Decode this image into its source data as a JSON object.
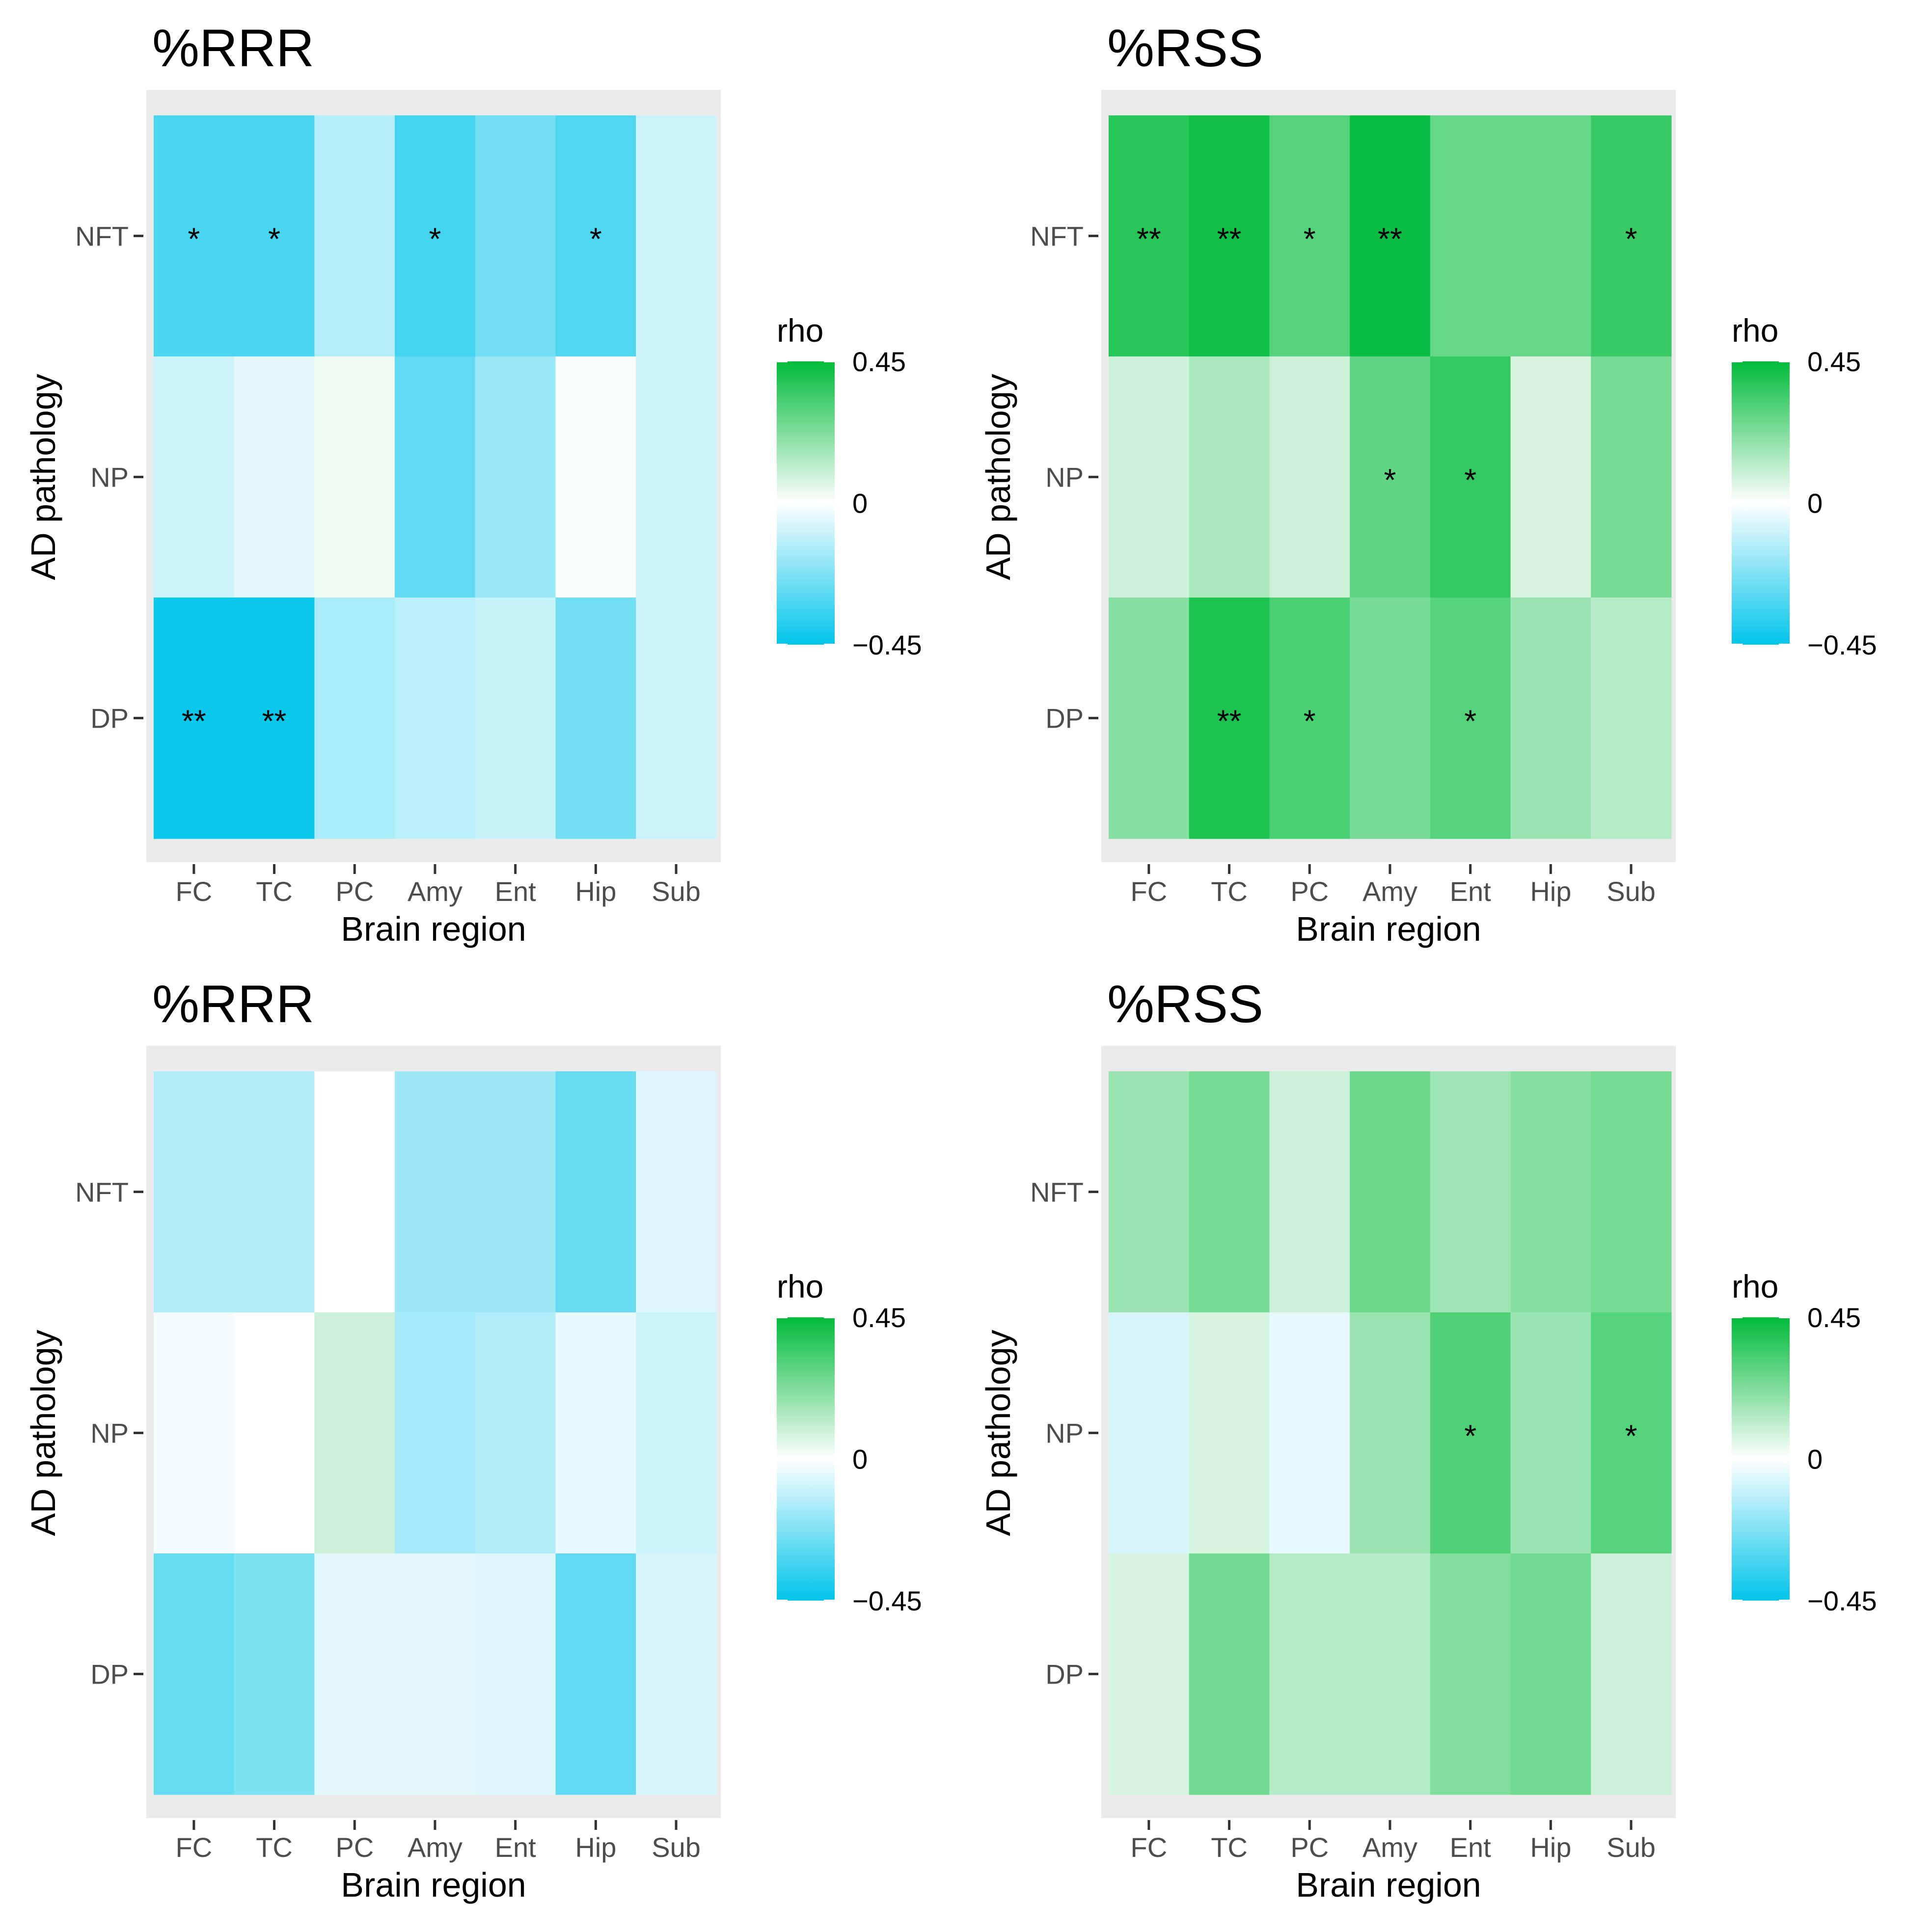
{
  "figure": {
    "rows": [
      "NFT",
      "NP",
      "DP"
    ],
    "columns": [
      "FC",
      "TC",
      "PC",
      "Amy",
      "Ent",
      "Hip",
      "Sub"
    ],
    "xlabel": "Brain region",
    "ylabel": "AD pathology",
    "legend": {
      "title": "rho",
      "max_label": "0.45",
      "mid_label": "0",
      "min_label": "−0.45",
      "colors": {
        "low": "#00c4ea",
        "mid": "#ffffff",
        "high": "#00bb3a"
      }
    }
  },
  "chart_data": [
    {
      "type": "heatmap",
      "title": "%RRR",
      "xlabel": "Brain region",
      "ylabel": "AD pathology",
      "x": [
        "FC",
        "TC",
        "PC",
        "Amy",
        "Ent",
        "Hip",
        "Sub"
      ],
      "y": [
        "NFT",
        "NP",
        "DP"
      ],
      "scale": {
        "min": -0.45,
        "max": 0.45
      },
      "values": [
        [
          -0.32,
          -0.32,
          -0.13,
          -0.33,
          -0.25,
          -0.31,
          -0.09
        ],
        [
          -0.09,
          -0.05,
          0.03,
          -0.28,
          -0.18,
          0.01,
          -0.09
        ],
        [
          -0.43,
          -0.43,
          -0.15,
          -0.12,
          -0.1,
          -0.25,
          -0.09
        ]
      ],
      "significance": [
        [
          "*",
          "*",
          "",
          "*",
          "",
          "*",
          ""
        ],
        [
          "",
          "",
          "",
          "",
          "",
          "",
          ""
        ],
        [
          "**",
          "**",
          "",
          "",
          "",
          "",
          ""
        ]
      ]
    },
    {
      "type": "heatmap",
      "title": "%RSS",
      "xlabel": "Brain region",
      "ylabel": "AD pathology",
      "x": [
        "FC",
        "TC",
        "PC",
        "Amy",
        "Ent",
        "Hip",
        "Sub"
      ],
      "y": [
        "NFT",
        "NP",
        "DP"
      ],
      "scale": {
        "min": -0.45,
        "max": 0.45
      },
      "values": [
        [
          0.38,
          0.42,
          0.3,
          0.43,
          0.27,
          0.27,
          0.35
        ],
        [
          0.09,
          0.15,
          0.09,
          0.28,
          0.36,
          0.07,
          0.24
        ],
        [
          0.21,
          0.4,
          0.32,
          0.24,
          0.3,
          0.18,
          0.13
        ]
      ],
      "significance": [
        [
          "**",
          "**",
          "*",
          "**",
          "",
          "",
          "*"
        ],
        [
          "",
          "",
          "",
          "*",
          "*",
          "",
          ""
        ],
        [
          "",
          "**",
          "*",
          "",
          "*",
          "",
          ""
        ]
      ]
    },
    {
      "type": "heatmap",
      "title": "%RRR",
      "xlabel": "Brain region",
      "ylabel": "AD pathology",
      "x": [
        "FC",
        "TC",
        "PC",
        "Amy",
        "Ent",
        "Hip",
        "Sub"
      ],
      "y": [
        "NFT",
        "NP",
        "DP"
      ],
      "scale": {
        "min": -0.45,
        "max": 0.45
      },
      "values": [
        [
          -0.14,
          -0.14,
          0.0,
          -0.17,
          -0.17,
          -0.27,
          -0.06
        ],
        [
          -0.02,
          0.0,
          0.09,
          -0.16,
          -0.14,
          -0.04,
          -0.09
        ],
        [
          -0.27,
          -0.23,
          -0.05,
          -0.05,
          -0.06,
          -0.28,
          -0.07
        ]
      ],
      "significance": [
        [
          "",
          "",
          "",
          "",
          "",
          "",
          ""
        ],
        [
          "",
          "",
          "",
          "",
          "",
          "",
          ""
        ],
        [
          "",
          "",
          "",
          "",
          "",
          "",
          ""
        ]
      ]
    },
    {
      "type": "heatmap",
      "title": "%RSS",
      "xlabel": "Brain region",
      "ylabel": "AD pathology",
      "x": [
        "FC",
        "TC",
        "PC",
        "Amy",
        "Ent",
        "Hip",
        "Sub"
      ],
      "y": [
        "NFT",
        "NP",
        "DP"
      ],
      "scale": {
        "min": -0.45,
        "max": 0.45
      },
      "values": [
        [
          0.18,
          0.24,
          0.09,
          0.26,
          0.17,
          0.21,
          0.24
        ],
        [
          -0.07,
          0.07,
          -0.04,
          0.18,
          0.31,
          0.18,
          0.3
        ],
        [
          0.07,
          0.25,
          0.13,
          0.13,
          0.22,
          0.25,
          0.09
        ]
      ],
      "significance": [
        [
          "",
          "",
          "",
          "",
          "",
          "",
          ""
        ],
        [
          "",
          "",
          "",
          "",
          "*",
          "",
          "*"
        ],
        [
          "",
          "",
          "",
          "",
          "",
          "",
          ""
        ]
      ]
    }
  ]
}
